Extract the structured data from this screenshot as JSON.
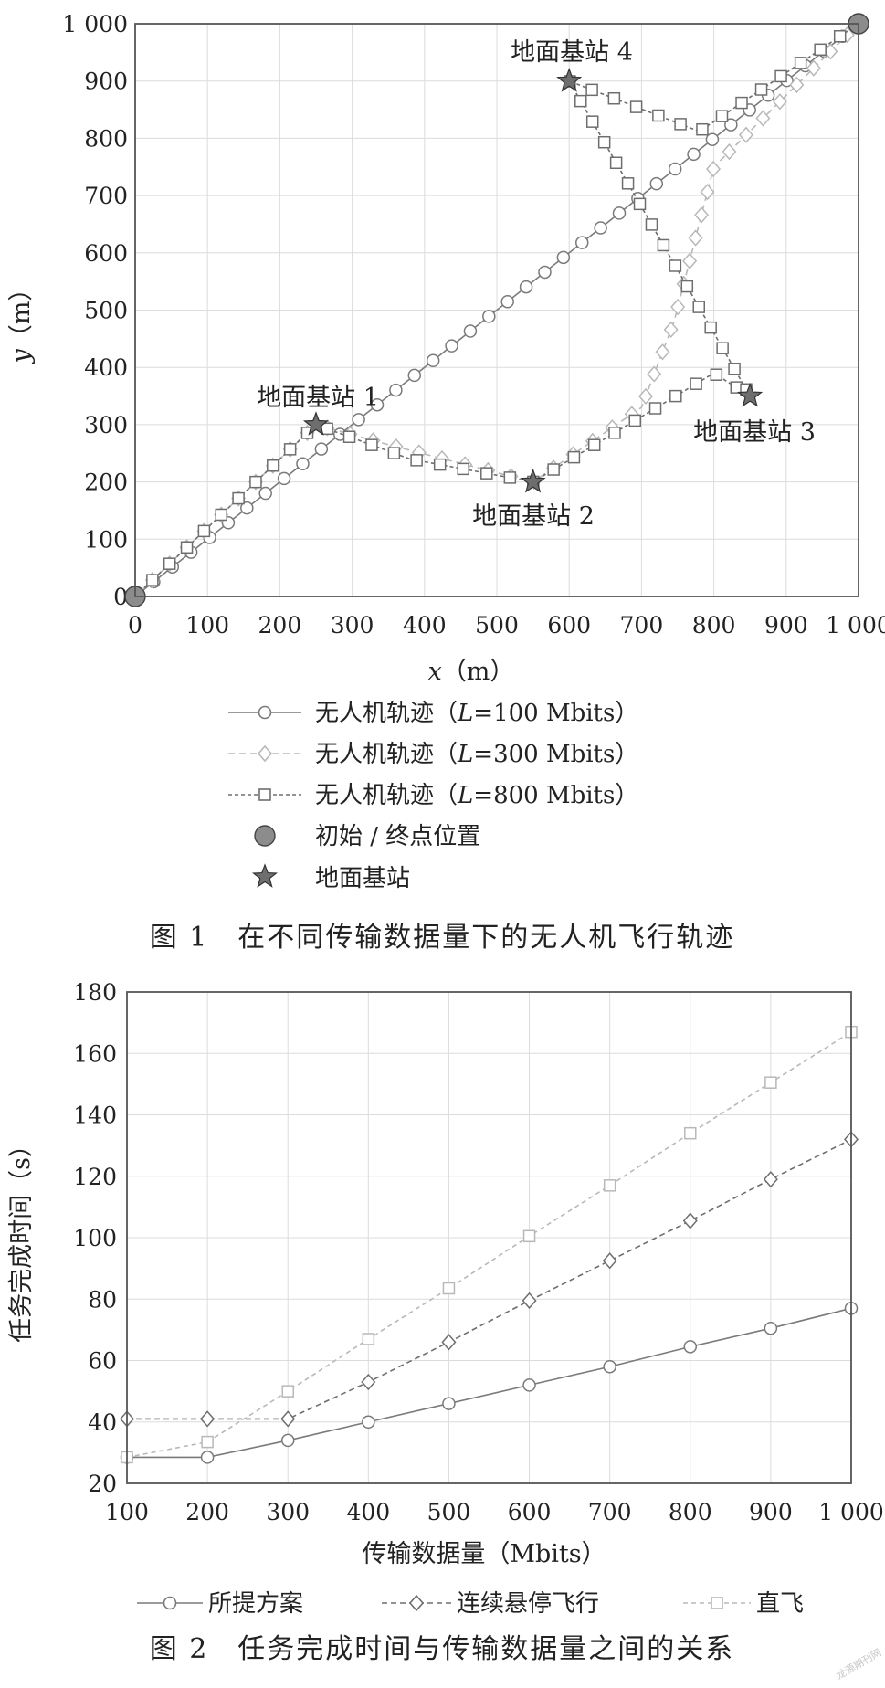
{
  "figure1": {
    "caption": "图 1　在不同传输数据量下的无人机飞行轨迹",
    "xlabel_var": "x",
    "xlabel_unit": "（m）",
    "ylabel_var": "y",
    "ylabel_unit": "（m）",
    "legend": [
      {
        "prefix": "无人机轨迹（",
        "var": "L",
        "suffix": "=100 Mbits）"
      },
      {
        "prefix": "无人机轨迹（",
        "var": "L",
        "suffix": "=300 Mbits）"
      },
      {
        "prefix": "无人机轨迹（",
        "var": "L",
        "suffix": "=800 Mbits）"
      },
      {
        "text": "初始 / 终点位置"
      },
      {
        "text": "地面基站"
      }
    ],
    "station_labels": [
      "地面基站 1",
      "地面基站 2",
      "地面基站 3",
      "地面基站 4"
    ]
  },
  "figure2": {
    "caption": "图 2　任务完成时间与传输数据量之间的关系",
    "xlabel": "传输数据量（Mbits）",
    "ylabel": "任务完成时间（s）",
    "legend": [
      "所提方案",
      "连续悬停飞行",
      "直飞"
    ]
  },
  "watermark": "龙源期刊网",
  "colors": {
    "series_100": "#7a7a7a",
    "series_300": "#b8b8b8",
    "series_800": "#6e6e6e",
    "endpoint": "#8c8c8c",
    "station": "#6e6e6e",
    "grid": "#dcdcdc"
  },
  "chart_data": [
    {
      "type": "line",
      "xlabel": "x（m）",
      "ylabel": "y（m）",
      "xlim": [
        0,
        1000
      ],
      "ylim": [
        0,
        1000
      ],
      "xticks": [
        "0",
        "100",
        "200",
        "300",
        "400",
        "500",
        "600",
        "700",
        "800",
        "900",
        "1 000"
      ],
      "yticks": [
        "0",
        "100",
        "200",
        "300",
        "400",
        "500",
        "600",
        "700",
        "800",
        "900",
        "1 000"
      ],
      "grid": true,
      "legend_position": "below",
      "endpoints": [
        [
          0,
          0
        ],
        [
          1000,
          1000
        ]
      ],
      "stations": [
        {
          "name": "地面基站 1",
          "x": 250,
          "y": 300
        },
        {
          "name": "地面基站 2",
          "x": 550,
          "y": 200
        },
        {
          "name": "地面基站 3",
          "x": 850,
          "y": 350
        },
        {
          "name": "地面基站 4",
          "x": 600,
          "y": 900
        }
      ],
      "series": [
        {
          "name": "无人机轨迹（L=100 Mbits）",
          "marker": "circle",
          "dash": "solid",
          "path": [
            [
              0,
              0
            ],
            [
              250,
              250
            ],
            [
              700,
              700
            ],
            [
              1000,
              1000
            ]
          ]
        },
        {
          "name": "无人机轨迹（L=300 Mbits）",
          "marker": "diamond",
          "dash": "dashed",
          "path": [
            [
              0,
              0
            ],
            [
              250,
              300
            ],
            [
              350,
              265
            ],
            [
              550,
              200
            ],
            [
              700,
              330
            ],
            [
              745,
              480
            ],
            [
              800,
              750
            ],
            [
              1000,
              1000
            ]
          ]
        },
        {
          "name": "无人机轨迹（L=800 Mbits）",
          "marker": "square",
          "dash": "dashed",
          "path": [
            [
              0,
              0
            ],
            [
              250,
              300
            ],
            [
              380,
              240
            ],
            [
              550,
              200
            ],
            [
              800,
              390
            ],
            [
              850,
              350
            ],
            [
              600,
              900
            ],
            [
              780,
              812
            ],
            [
              1000,
              1000
            ]
          ]
        }
      ]
    },
    {
      "type": "line",
      "xlabel": "传输数据量（Mbits）",
      "ylabel": "任务完成时间（s）",
      "xlim": [
        100,
        1000
      ],
      "ylim": [
        20,
        180
      ],
      "xticks": [
        "100",
        "200",
        "300",
        "400",
        "500",
        "600",
        "700",
        "800",
        "900",
        "1 000"
      ],
      "yticks": [
        "20",
        "40",
        "60",
        "80",
        "100",
        "120",
        "140",
        "160",
        "180"
      ],
      "grid": true,
      "legend_position": "below",
      "x": [
        100,
        200,
        300,
        400,
        500,
        600,
        700,
        800,
        900,
        1000
      ],
      "series": [
        {
          "name": "所提方案",
          "marker": "circle",
          "dash": "solid",
          "values": [
            28.5,
            28.5,
            34,
            40,
            46,
            52,
            58,
            64.5,
            70.5,
            77
          ]
        },
        {
          "name": "连续悬停飞行",
          "marker": "diamond",
          "dash": "dashed",
          "values": [
            41,
            41,
            41,
            53,
            66,
            79.5,
            92.5,
            105.5,
            119,
            132
          ]
        },
        {
          "name": "直飞",
          "marker": "square",
          "dash": "dashed",
          "values": [
            28.5,
            33.5,
            50,
            67,
            83.5,
            100.5,
            117,
            134,
            150.5,
            167
          ]
        }
      ]
    }
  ]
}
